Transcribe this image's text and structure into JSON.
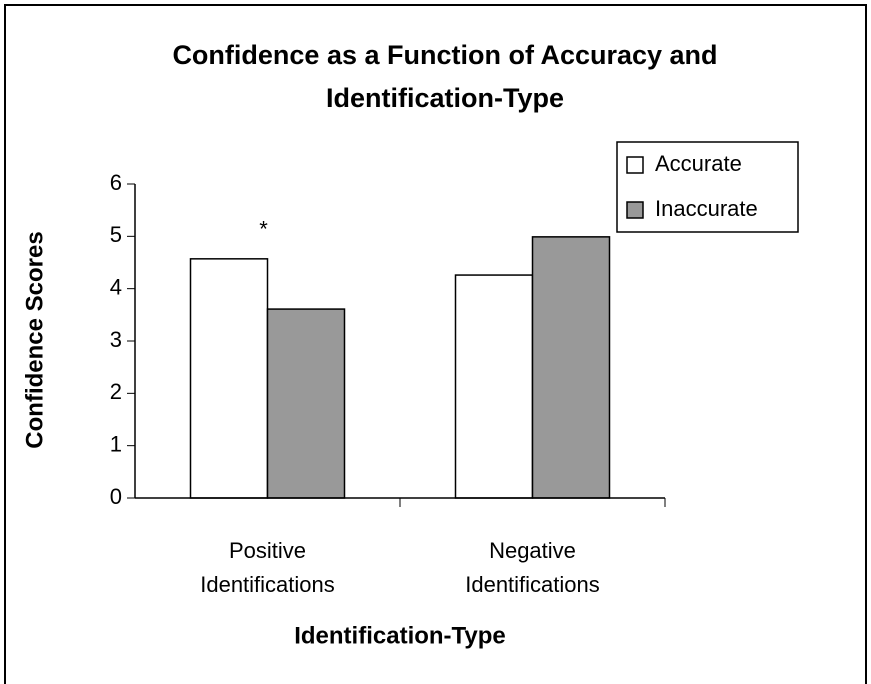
{
  "chart_data": {
    "type": "bar",
    "title": [
      "Confidence as a Function of Accuracy and",
      "Identification-Type"
    ],
    "x_label": "Identification-Type",
    "y_label": "Confidence Scores",
    "annotation": "*",
    "categories": [
      "Positive Identifications",
      "Negative Identifications"
    ],
    "series": [
      {
        "name": "Accurate",
        "color": "#ffffff",
        "values": [
          4.57,
          4.26
        ]
      },
      {
        "name": "Inaccurate",
        "color": "#999999",
        "values": [
          3.61,
          4.99
        ]
      }
    ],
    "ylim": [
      0,
      6
    ],
    "yticks": [
      0,
      1,
      2,
      3,
      4,
      5,
      6
    ],
    "grid": false,
    "legend": "top-right"
  }
}
